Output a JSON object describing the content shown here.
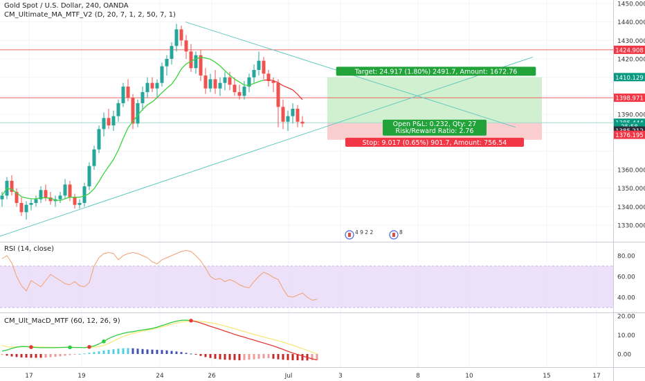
{
  "header": {
    "symbol_line": "Gold Spot / U.S. Dollar, 240, OANDA",
    "indicator_line": "CM_Ultimate_MA_MTF_V2 (D, 20, 7, 1, 2, 50, 7, 1)",
    "rsi_title": "RSI (14, close)",
    "macd_title": "CM_Ult_MacD_MTF (60, 12, 26, 9)"
  },
  "colors": {
    "up": "#26a69a",
    "down": "#ef5350",
    "ma_green": "#3cd23c",
    "ma_red": "#e53935",
    "trend_line": "#64c8be",
    "hline": "#f06464",
    "rsi_band": "#e8d8f8",
    "rsi_line": "#f0a070",
    "target_zone": "#c8edc8",
    "stop_zone": "#f9c6c6"
  },
  "chart_data": [
    {
      "type": "candlestick",
      "pane": "price",
      "title": "Gold Spot / U.S. Dollar, 240, OANDA",
      "ylim": [
        1323,
        1452
      ],
      "y_ticks": [
        "1450.000",
        "1440.000",
        "1430.000",
        "1420.000",
        "1410.000",
        "1390.000",
        "1360.000",
        "1350.000",
        "1340.000",
        "1330.000"
      ],
      "x_ticks": [
        "17",
        "19",
        "24",
        "26",
        "Jul",
        "3",
        "8",
        "10",
        "15",
        "17"
      ],
      "grid": true,
      "candles": [
        {
          "o": 1344,
          "h": 1348,
          "l": 1340,
          "c": 1346
        },
        {
          "o": 1346,
          "h": 1356,
          "l": 1344,
          "c": 1354
        },
        {
          "o": 1354,
          "h": 1357,
          "l": 1346,
          "c": 1348
        },
        {
          "o": 1348,
          "h": 1350,
          "l": 1340,
          "c": 1342
        },
        {
          "o": 1342,
          "h": 1345,
          "l": 1335,
          "c": 1337
        },
        {
          "o": 1337,
          "h": 1343,
          "l": 1333,
          "c": 1341
        },
        {
          "o": 1341,
          "h": 1344,
          "l": 1338,
          "c": 1342
        },
        {
          "o": 1342,
          "h": 1346,
          "l": 1340,
          "c": 1344
        },
        {
          "o": 1344,
          "h": 1351,
          "l": 1342,
          "c": 1349
        },
        {
          "o": 1349,
          "h": 1352,
          "l": 1343,
          "c": 1345
        },
        {
          "o": 1345,
          "h": 1348,
          "l": 1341,
          "c": 1343
        },
        {
          "o": 1343,
          "h": 1346,
          "l": 1340,
          "c": 1344
        },
        {
          "o": 1344,
          "h": 1348,
          "l": 1342,
          "c": 1346
        },
        {
          "o": 1346,
          "h": 1355,
          "l": 1344,
          "c": 1352
        },
        {
          "o": 1352,
          "h": 1354,
          "l": 1343,
          "c": 1345
        },
        {
          "o": 1345,
          "h": 1347,
          "l": 1339,
          "c": 1341
        },
        {
          "o": 1341,
          "h": 1344,
          "l": 1339,
          "c": 1342
        },
        {
          "o": 1342,
          "h": 1353,
          "l": 1340,
          "c": 1351
        },
        {
          "o": 1351,
          "h": 1364,
          "l": 1349,
          "c": 1362
        },
        {
          "o": 1362,
          "h": 1373,
          "l": 1360,
          "c": 1371
        },
        {
          "o": 1371,
          "h": 1384,
          "l": 1369,
          "c": 1382
        },
        {
          "o": 1382,
          "h": 1391,
          "l": 1378,
          "c": 1388
        },
        {
          "o": 1388,
          "h": 1393,
          "l": 1382,
          "c": 1384
        },
        {
          "o": 1384,
          "h": 1392,
          "l": 1381,
          "c": 1389
        },
        {
          "o": 1389,
          "h": 1398,
          "l": 1386,
          "c": 1396
        },
        {
          "o": 1396,
          "h": 1407,
          "l": 1394,
          "c": 1405
        },
        {
          "o": 1405,
          "h": 1409,
          "l": 1397,
          "c": 1399
        },
        {
          "o": 1399,
          "h": 1401,
          "l": 1382,
          "c": 1385
        },
        {
          "o": 1385,
          "h": 1398,
          "l": 1383,
          "c": 1396
        },
        {
          "o": 1396,
          "h": 1405,
          "l": 1392,
          "c": 1402
        },
        {
          "o": 1402,
          "h": 1410,
          "l": 1399,
          "c": 1407
        },
        {
          "o": 1407,
          "h": 1410,
          "l": 1402,
          "c": 1404
        },
        {
          "o": 1404,
          "h": 1409,
          "l": 1399,
          "c": 1407
        },
        {
          "o": 1407,
          "h": 1418,
          "l": 1405,
          "c": 1416
        },
        {
          "o": 1416,
          "h": 1422,
          "l": 1411,
          "c": 1420
        },
        {
          "o": 1420,
          "h": 1429,
          "l": 1417,
          "c": 1427
        },
        {
          "o": 1427,
          "h": 1439,
          "l": 1424,
          "c": 1436
        },
        {
          "o": 1436,
          "h": 1438,
          "l": 1427,
          "c": 1430
        },
        {
          "o": 1430,
          "h": 1433,
          "l": 1420,
          "c": 1424
        },
        {
          "o": 1424,
          "h": 1428,
          "l": 1413,
          "c": 1415
        },
        {
          "o": 1415,
          "h": 1424,
          "l": 1412,
          "c": 1422
        },
        {
          "o": 1422,
          "h": 1425,
          "l": 1408,
          "c": 1411
        },
        {
          "o": 1411,
          "h": 1415,
          "l": 1401,
          "c": 1404
        },
        {
          "o": 1404,
          "h": 1412,
          "l": 1402,
          "c": 1409
        },
        {
          "o": 1409,
          "h": 1414,
          "l": 1401,
          "c": 1404
        },
        {
          "o": 1404,
          "h": 1410,
          "l": 1400,
          "c": 1407
        },
        {
          "o": 1407,
          "h": 1413,
          "l": 1403,
          "c": 1410
        },
        {
          "o": 1410,
          "h": 1413,
          "l": 1403,
          "c": 1406
        },
        {
          "o": 1406,
          "h": 1410,
          "l": 1400,
          "c": 1402
        },
        {
          "o": 1402,
          "h": 1406,
          "l": 1398,
          "c": 1400
        },
        {
          "o": 1400,
          "h": 1408,
          "l": 1398,
          "c": 1405
        },
        {
          "o": 1405,
          "h": 1412,
          "l": 1402,
          "c": 1410
        },
        {
          "o": 1410,
          "h": 1417,
          "l": 1407,
          "c": 1414
        },
        {
          "o": 1414,
          "h": 1424,
          "l": 1411,
          "c": 1419
        },
        {
          "o": 1419,
          "h": 1421,
          "l": 1409,
          "c": 1412
        },
        {
          "o": 1412,
          "h": 1414,
          "l": 1405,
          "c": 1408
        },
        {
          "o": 1408,
          "h": 1410,
          "l": 1402,
          "c": 1407
        },
        {
          "o": 1407,
          "h": 1409,
          "l": 1383,
          "c": 1394
        },
        {
          "o": 1394,
          "h": 1398,
          "l": 1382,
          "c": 1386
        },
        {
          "o": 1386,
          "h": 1392,
          "l": 1381,
          "c": 1389
        },
        {
          "o": 1389,
          "h": 1396,
          "l": 1385,
          "c": 1393
        },
        {
          "o": 1393,
          "h": 1395,
          "l": 1383,
          "c": 1386
        },
        {
          "o": 1386,
          "h": 1389,
          "l": 1383,
          "c": 1385
        }
      ],
      "horizontal_levels": [
        1424.908,
        1398.971,
        1385.444
      ],
      "price_labels": [
        {
          "text": "1424.908",
          "bg": "#f23645"
        },
        {
          "text": "1410.129",
          "bg": "#089981"
        },
        {
          "text": "1398.971",
          "bg": "#f23645"
        },
        {
          "text": "1385.444",
          "bg": "#089981"
        },
        {
          "text": "25:58",
          "bg": "#089981"
        },
        {
          "text": "1385.212",
          "bg": "#2a2e39"
        },
        {
          "text": "1376.195",
          "bg": "#f23645"
        }
      ],
      "position": {
        "entry": 1385.212,
        "target": 1410.129,
        "stop": 1376.195,
        "target_label": "Target: 24.917 (1.80%) 2491.7, Amount: 1672.76",
        "pnl_label": "Open P&L: 0.232, Qty: 27",
        "rr_label": "Risk/Reward Ratio: 2.76",
        "stop_label": "Stop: 9.017 (0.65%) 901.7, Amount: 756.54"
      },
      "events": [
        "4 9 2 2",
        "8"
      ]
    },
    {
      "type": "line",
      "pane": "rsi",
      "title": "RSI (14, close)",
      "ylim": [
        25,
        92
      ],
      "y_ticks": [
        "80.00",
        "60.00",
        "40.00"
      ],
      "band": [
        30,
        70
      ],
      "values": [
        77,
        80,
        73,
        60,
        51,
        46,
        56,
        53,
        50,
        56,
        62,
        59,
        56,
        53,
        52,
        55,
        51,
        50,
        54,
        70,
        78,
        82,
        83,
        82,
        76,
        80,
        82,
        83,
        82,
        80,
        78,
        74,
        72,
        76,
        78,
        80,
        82,
        84,
        85,
        84,
        80,
        75,
        68,
        60,
        57,
        58,
        55,
        57,
        55,
        52,
        50,
        49,
        55,
        60,
        64,
        62,
        59,
        57,
        48,
        41,
        40,
        42,
        44,
        40,
        37,
        38
      ]
    },
    {
      "type": "line",
      "pane": "macd",
      "title": "CM_Ult_MacD_MTF (60, 12, 26, 9)",
      "ylim": [
        -4.5,
        21
      ],
      "y_ticks": [
        "20.00",
        "10.00",
        "0.00"
      ],
      "macd": [
        1.5,
        2.1,
        2.9,
        3.6,
        3.9,
        3.9,
        3.6,
        3.4,
        3.3,
        3.3,
        3.3,
        3.3,
        3.4,
        3.5,
        3.5,
        3.4,
        3.4,
        3.3,
        3.7,
        4.2,
        5.3,
        6.6,
        8.1,
        9.2,
        10.1,
        10.8,
        11.4,
        11.7,
        12.2,
        12.6,
        13.0,
        13.4,
        14.1,
        14.9,
        15.7,
        16.6,
        17.2,
        17.7,
        17.8,
        17.5,
        17.0,
        16.3,
        15.4,
        14.5,
        13.7,
        12.9,
        12.0,
        11.2,
        10.3,
        9.5,
        8.8,
        8.0,
        7.3,
        6.5,
        5.8,
        5.0,
        4.2,
        3.3,
        2.4,
        1.4,
        0.5,
        -0.3,
        -1.0,
        -1.8,
        -2.5,
        -3.2
      ],
      "signal": [
        4.5,
        3.8,
        3.6,
        3.8,
        4.0,
        4.0,
        3.9,
        3.7,
        3.6,
        3.6,
        3.5,
        3.5,
        3.5,
        3.5,
        3.5,
        3.5,
        3.4,
        3.3,
        3.4,
        3.6,
        3.9,
        4.5,
        5.6,
        6.8,
        8.0,
        9.2,
        10.1,
        10.8,
        11.4,
        12.0,
        12.5,
        13.0,
        13.6,
        14.2,
        14.9,
        15.6,
        16.2,
        16.8,
        17.1,
        17.3,
        17.3,
        17.1,
        16.8,
        16.4,
        15.9,
        15.3,
        14.7,
        14.0,
        13.3,
        12.5,
        11.8,
        11.0,
        10.3,
        9.6,
        8.9,
        8.2,
        7.6,
        6.9,
        6.2,
        5.4,
        4.6,
        3.7,
        2.8,
        1.9,
        1.0,
        0.1
      ],
      "crosses": [
        {
          "i": 6,
          "dir": "down"
        },
        {
          "i": 14,
          "dir": "up"
        },
        {
          "i": 18,
          "dir": "down"
        },
        {
          "i": 21,
          "dir": "up"
        },
        {
          "i": 39,
          "dir": "down"
        }
      ],
      "histogram": [
        -0.5,
        -0.9,
        -1.3,
        -1.6,
        -1.8,
        -1.9,
        -2.0,
        -2.0,
        -2.0,
        -1.9,
        -1.7,
        -1.5,
        -1.2,
        -0.9,
        -0.6,
        -0.3,
        0.0,
        0.3,
        0.6,
        1.0,
        1.4,
        1.8,
        2.2,
        2.5,
        2.8,
        3.0,
        3.1,
        3.0,
        2.8,
        2.6,
        2.4,
        2.3,
        2.2,
        2.1,
        1.9,
        1.6,
        1.3,
        1.0,
        0.6,
        0.2,
        -0.4,
        -1.0,
        -1.6,
        -2.1,
        -2.5,
        -2.8,
        -3.0,
        -3.1,
        -3.2,
        -3.3,
        -3.2,
        -3.0,
        -2.8,
        -2.5,
        -2.3,
        -2.2,
        -2.5,
        -2.8,
        -3.0,
        -3.2,
        -3.3,
        -3.3,
        -3.4,
        -3.4,
        -3.3,
        -3.2
      ]
    }
  ]
}
